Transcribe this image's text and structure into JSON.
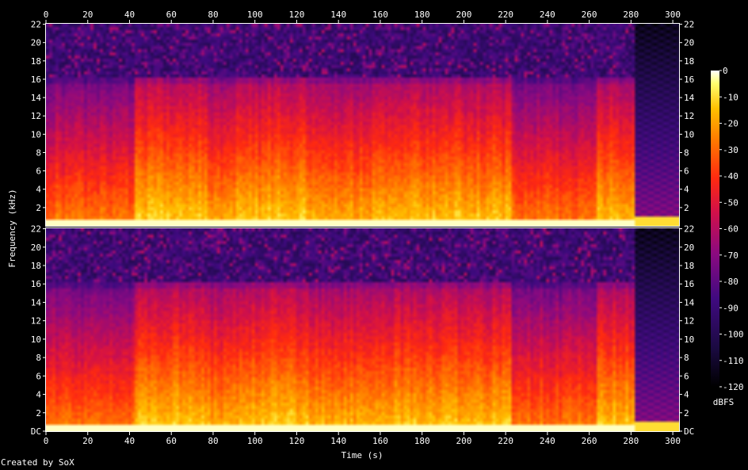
{
  "chart_data": {
    "type": "heatmap",
    "title": "",
    "xlabel": "Time (s)",
    "ylabel": "Frequency (kHz)",
    "channels": 2,
    "xlim": [
      0,
      303
    ],
    "ylim": [
      0,
      22.05
    ],
    "x_ticks": [
      0,
      20,
      40,
      60,
      80,
      100,
      120,
      140,
      160,
      180,
      200,
      220,
      240,
      260,
      280,
      300
    ],
    "y_ticks": [
      {
        "value": 0,
        "label": "DC"
      },
      {
        "value": 2,
        "label": "2"
      },
      {
        "value": 4,
        "label": "4"
      },
      {
        "value": 6,
        "label": "6"
      },
      {
        "value": 8,
        "label": "8"
      },
      {
        "value": 10,
        "label": "10"
      },
      {
        "value": 12,
        "label": "12"
      },
      {
        "value": 14,
        "label": "14"
      },
      {
        "value": 16,
        "label": "16"
      },
      {
        "value": 18,
        "label": "18"
      },
      {
        "value": 20,
        "label": "20"
      },
      {
        "value": 22,
        "label": "22"
      }
    ],
    "colorbar": {
      "label": "dBFS",
      "range": [
        -120,
        0
      ],
      "ticks": [
        0,
        -10,
        -20,
        -30,
        -40,
        -50,
        -60,
        -70,
        -80,
        -90,
        -100,
        -110,
        -120
      ]
    },
    "lowpass_cutoff_khz": 16,
    "segments": [
      {
        "start": 0,
        "end": 42,
        "level_db": -55
      },
      {
        "start": 42,
        "end": 78,
        "level_db": -40
      },
      {
        "start": 78,
        "end": 91,
        "level_db": -45
      },
      {
        "start": 91,
        "end": 105,
        "level_db": -42
      },
      {
        "start": 105,
        "end": 125,
        "level_db": -40
      },
      {
        "start": 125,
        "end": 160,
        "level_db": -45
      },
      {
        "start": 160,
        "end": 222,
        "level_db": -42
      },
      {
        "start": 222,
        "end": 264,
        "level_db": -55
      },
      {
        "start": 264,
        "end": 282,
        "level_db": -42
      },
      {
        "start": 282,
        "end": 303,
        "level_db": -85
      }
    ]
  },
  "credit": "Created by SoX",
  "colors": {
    "background": "#000000",
    "axis": "#ffffff"
  }
}
